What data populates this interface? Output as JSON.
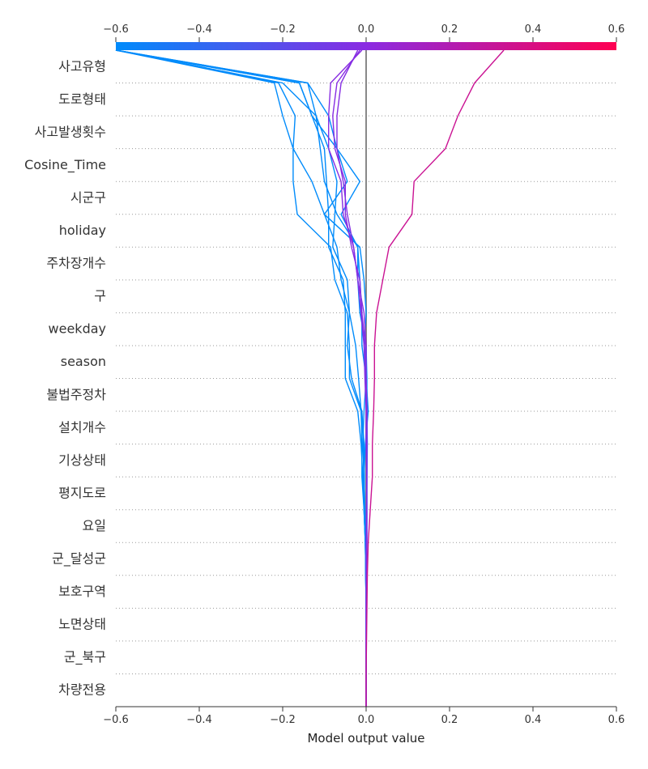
{
  "chart_data": {
    "type": "line",
    "xlabel": "Model output value",
    "xlim": [
      -0.6,
      0.6
    ],
    "x_ticks": [
      -0.6,
      -0.4,
      -0.2,
      0.0,
      0.2,
      0.4,
      0.6
    ],
    "x_tick_labels": [
      "−0.6",
      "−0.4",
      "−0.2",
      "0.0",
      "0.2",
      "0.4",
      "0.6"
    ],
    "base_value": 0.0,
    "colorbar": {
      "low_color": "#008bfb",
      "mid_color": "#8a2be2",
      "high_color": "#ff0052"
    },
    "features": [
      "사고유형",
      "도로형태",
      "사고발생횟수",
      "Cosine_Time",
      "시군구",
      "holiday",
      "주차장개수",
      "구",
      "weekday",
      "season",
      "불법주정차",
      "설치개수",
      "기상상태",
      "평지도로",
      "요일",
      "군_달성군",
      "보호구역",
      "노면상태",
      "군_북구",
      "차량전용"
    ],
    "series": [
      {
        "values": [
          -0.6,
          -0.14,
          -0.12,
          -0.09,
          -0.07,
          -0.075,
          -0.08,
          -0.045,
          -0.04,
          -0.025,
          -0.018,
          -0.012,
          -0.01,
          -0.01,
          -0.005,
          -0.002,
          0.0,
          0.0,
          0.0,
          0.0,
          0.0
        ]
      },
      {
        "values": [
          -0.6,
          -0.22,
          -0.2,
          -0.175,
          -0.175,
          -0.165,
          -0.085,
          -0.075,
          -0.045,
          -0.04,
          -0.04,
          -0.012,
          -0.006,
          -0.006,
          -0.005,
          -0.002,
          -0.001,
          0.0,
          0.0,
          0.0,
          0.0
        ]
      },
      {
        "values": [
          -0.6,
          -0.16,
          -0.13,
          -0.1,
          -0.095,
          -0.09,
          -0.09,
          -0.055,
          -0.05,
          -0.05,
          -0.05,
          -0.02,
          -0.012,
          -0.008,
          -0.005,
          -0.002,
          -0.001,
          0.0,
          0.0,
          0.0,
          0.0
        ]
      },
      {
        "values": [
          -0.6,
          -0.14,
          -0.09,
          -0.07,
          -0.045,
          -0.1,
          -0.015,
          -0.005,
          0.0,
          -0.005,
          0.0,
          -0.005,
          -0.008,
          -0.005,
          -0.003,
          -0.002,
          -0.001,
          0.0,
          0.0,
          0.0,
          0.0
        ]
      },
      {
        "values": [
          -0.6,
          -0.21,
          -0.17,
          -0.175,
          -0.13,
          -0.1,
          -0.07,
          -0.06,
          -0.04,
          -0.045,
          -0.035,
          -0.01,
          -0.005,
          -0.004,
          -0.004,
          -0.001,
          -0.001,
          0.0,
          0.0,
          0.0,
          0.0
        ]
      },
      {
        "values": [
          -0.6,
          -0.2,
          -0.12,
          -0.11,
          -0.1,
          -0.07,
          -0.02,
          -0.015,
          -0.01,
          -0.01,
          0.0,
          0.005,
          -0.002,
          -0.005,
          -0.003,
          -0.002,
          -0.001,
          0.0,
          0.0,
          0.0,
          0.0
        ]
      },
      {
        "values": [
          -0.6,
          -0.16,
          -0.13,
          -0.07,
          -0.015,
          -0.06,
          -0.02,
          -0.02,
          -0.015,
          0.0,
          0.002,
          0.002,
          0.003,
          0.002,
          0.002,
          0.002,
          0.001,
          0.001,
          0.0,
          0.0,
          0.0
        ]
      },
      {
        "values": [
          -0.01,
          -0.085,
          -0.09,
          -0.09,
          -0.06,
          -0.055,
          -0.03,
          -0.02,
          -0.005,
          0.0,
          0.0,
          0.002,
          0.002,
          0.002,
          0.002,
          0.002,
          0.001,
          0.001,
          0.0,
          0.0,
          0.0
        ]
      },
      {
        "values": [
          -0.015,
          -0.07,
          -0.08,
          -0.075,
          -0.05,
          -0.05,
          -0.035,
          -0.015,
          -0.01,
          -0.002,
          0.0,
          0.002,
          0.002,
          0.002,
          0.001,
          0.001,
          0.001,
          0.0,
          0.0,
          0.0,
          0.0
        ]
      },
      {
        "values": [
          -0.02,
          -0.06,
          -0.07,
          -0.07,
          -0.055,
          -0.045,
          -0.03,
          -0.02,
          -0.012,
          -0.005,
          -0.003,
          0.0,
          0.0,
          0.001,
          0.001,
          0.0,
          0.0,
          0.0,
          0.0,
          0.0,
          0.0
        ]
      },
      {
        "values": [
          0.33,
          0.26,
          0.22,
          0.19,
          0.115,
          0.11,
          0.055,
          0.04,
          0.025,
          0.02,
          0.02,
          0.018,
          0.015,
          0.015,
          0.01,
          0.005,
          0.003,
          0.002,
          0.001,
          0.0,
          0.0
        ]
      }
    ]
  }
}
